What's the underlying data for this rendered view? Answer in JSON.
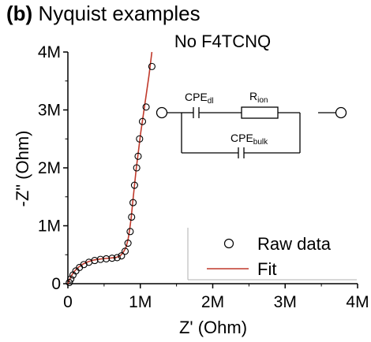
{
  "panel_label": "(b)",
  "panel_title": "Nyquist examples",
  "colors": {
    "fit": "#c0392b",
    "axis": "#000000",
    "legend_border": "#b0b0b0"
  },
  "chart_data": {
    "type": "scatter",
    "title": "No F4TCNQ",
    "xlabel": "Z' (Ohm)",
    "ylabel": "-Z\" (Ohm)",
    "xlim": [
      0,
      4000000
    ],
    "ylim": [
      0,
      4000000
    ],
    "xticks": [
      0,
      1000000,
      2000000,
      3000000,
      4000000
    ],
    "xticklabels": [
      "0",
      "1M",
      "2M",
      "3M",
      "4M"
    ],
    "yticks": [
      0,
      1000000,
      2000000,
      3000000,
      4000000
    ],
    "yticklabels": [
      "0",
      "1M",
      "2M",
      "3M",
      "4M"
    ],
    "grid": false,
    "legend": {
      "placement": "bottom-right",
      "entries": [
        "Raw data",
        "Fit"
      ]
    },
    "series": [
      {
        "name": "Raw data",
        "marker": "open-circle",
        "points": [
          [
            20000,
            20000
          ],
          [
            40000,
            80000
          ],
          [
            70000,
            150000
          ],
          [
            110000,
            220000
          ],
          [
            160000,
            280000
          ],
          [
            220000,
            330000
          ],
          [
            290000,
            370000
          ],
          [
            370000,
            400000
          ],
          [
            450000,
            420000
          ],
          [
            530000,
            430000
          ],
          [
            610000,
            440000
          ],
          [
            680000,
            450000
          ],
          [
            740000,
            480000
          ],
          [
            790000,
            560000
          ],
          [
            830000,
            700000
          ],
          [
            860000,
            900000
          ],
          [
            880000,
            1150000
          ],
          [
            900000,
            1400000
          ],
          [
            920000,
            1700000
          ],
          [
            950000,
            2000000
          ],
          [
            970000,
            2200000
          ],
          [
            990000,
            2500000
          ],
          [
            1030000,
            2800000
          ],
          [
            1080000,
            3050000
          ],
          [
            1160000,
            3750000
          ]
        ]
      },
      {
        "name": "Fit",
        "style": "line",
        "points": [
          [
            0,
            0
          ],
          [
            10000,
            30000
          ],
          [
            30000,
            90000
          ],
          [
            60000,
            160000
          ],
          [
            100000,
            230000
          ],
          [
            150000,
            290000
          ],
          [
            210000,
            340000
          ],
          [
            280000,
            380000
          ],
          [
            360000,
            410000
          ],
          [
            440000,
            425000
          ],
          [
            520000,
            435000
          ],
          [
            600000,
            445000
          ],
          [
            670000,
            455000
          ],
          [
            720000,
            480000
          ],
          [
            760000,
            530000
          ],
          [
            800000,
            620000
          ],
          [
            830000,
            760000
          ],
          [
            855000,
            950000
          ],
          [
            875000,
            1150000
          ],
          [
            895000,
            1400000
          ],
          [
            920000,
            1700000
          ],
          [
            945000,
            2000000
          ],
          [
            975000,
            2300000
          ],
          [
            1005000,
            2600000
          ],
          [
            1040000,
            2900000
          ],
          [
            1080000,
            3250000
          ],
          [
            1120000,
            3600000
          ],
          [
            1160000,
            4000000
          ]
        ]
      }
    ],
    "inset_circuit": {
      "labels": [
        "CPE",
        "dl",
        "R",
        "ion",
        "CPE",
        "bulk"
      ]
    }
  }
}
